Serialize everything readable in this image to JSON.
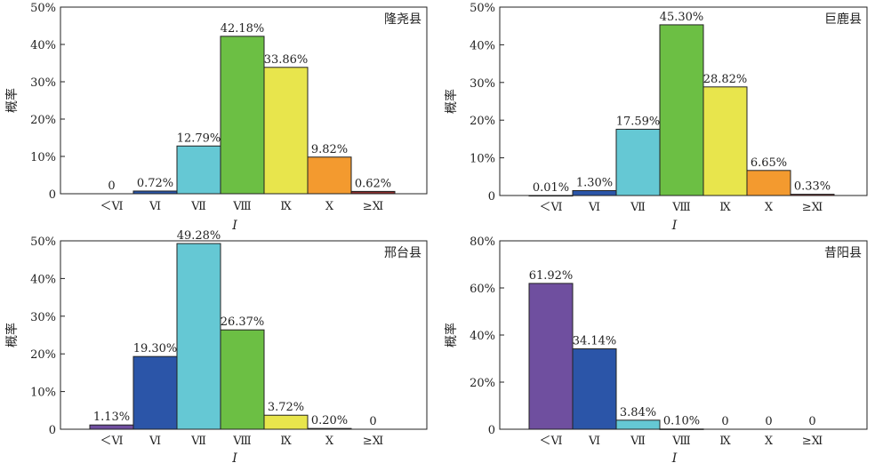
{
  "colors": {
    "lt6": "#6f4f9f",
    "6": "#2b55a8",
    "7": "#65c8d4",
    "8": "#6cbf44",
    "9": "#e8e54c",
    "10": "#f39a2f",
    "ge11": "#8b2d2d",
    "frame": "#222222"
  },
  "chart_data": [
    {
      "type": "bar",
      "panel": "top-left",
      "county": "隆尧县",
      "xlabel": "I",
      "ylabel": "概率",
      "ylim": [
        0,
        50
      ],
      "yticks": [
        "0",
        "10%",
        "20%",
        "30%",
        "40%",
        "50%"
      ],
      "categories": [
        "＜Ⅵ",
        "Ⅵ",
        "Ⅶ",
        "Ⅷ",
        "Ⅸ",
        "Ⅹ",
        "≥Ⅺ"
      ],
      "values": [
        0,
        0.72,
        12.79,
        42.18,
        33.86,
        9.82,
        0.62
      ],
      "value_labels": [
        "0",
        "0.72%",
        "12.79%",
        "42.18%",
        "33.86%",
        "9.82%",
        "0.62%"
      ]
    },
    {
      "type": "bar",
      "panel": "top-right",
      "county": "巨鹿县",
      "xlabel": "I",
      "ylabel": "概率",
      "ylim": [
        0,
        50
      ],
      "yticks": [
        "0",
        "10%",
        "20%",
        "30%",
        "40%",
        "50%"
      ],
      "categories": [
        "＜Ⅵ",
        "Ⅵ",
        "Ⅶ",
        "Ⅷ",
        "Ⅸ",
        "Ⅹ",
        "≥Ⅺ"
      ],
      "values": [
        0.01,
        1.3,
        17.59,
        45.3,
        28.82,
        6.65,
        0.33
      ],
      "value_labels": [
        "0.01%",
        "1.30%",
        "17.59%",
        "45.30%",
        "28.82%",
        "6.65%",
        "0.33%"
      ]
    },
    {
      "type": "bar",
      "panel": "bottom-left",
      "county": "邢台县",
      "xlabel": "I",
      "ylabel": "概率",
      "ylim": [
        0,
        50
      ],
      "yticks": [
        "0",
        "10%",
        "20%",
        "30%",
        "40%",
        "50%"
      ],
      "categories": [
        "＜Ⅵ",
        "Ⅵ",
        "Ⅶ",
        "Ⅷ",
        "Ⅸ",
        "Ⅹ",
        "≥Ⅺ"
      ],
      "values": [
        1.13,
        19.3,
        49.28,
        26.37,
        3.72,
        0.2,
        0
      ],
      "value_labels": [
        "1.13%",
        "19.30%",
        "49.28%",
        "26.37%",
        "3.72%",
        "0.20%",
        "0"
      ]
    },
    {
      "type": "bar",
      "panel": "bottom-right",
      "county": "昔阳县",
      "xlabel": "I",
      "ylabel": "概率",
      "ylim": [
        0,
        80
      ],
      "yticks": [
        "0",
        "20%",
        "40%",
        "60%",
        "80%"
      ],
      "categories": [
        "＜Ⅵ",
        "Ⅵ",
        "Ⅶ",
        "Ⅷ",
        "Ⅸ",
        "Ⅹ",
        "≥Ⅺ"
      ],
      "values": [
        61.92,
        34.14,
        3.84,
        0.1,
        0,
        0,
        0
      ],
      "value_labels": [
        "61.92%",
        "34.14%",
        "3.84%",
        "0.10%",
        "0",
        "0",
        "0"
      ]
    }
  ]
}
